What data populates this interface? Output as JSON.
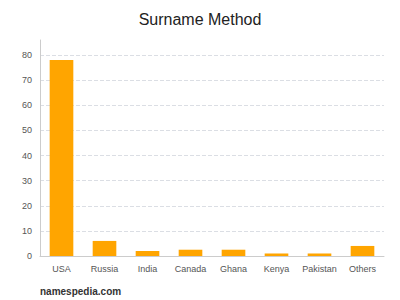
{
  "chart_data": {
    "type": "bar",
    "title": "Surname Method",
    "categories": [
      "USA",
      "Russia",
      "India",
      "Canada",
      "Ghana",
      "Kenya",
      "Pakistan",
      "Others"
    ],
    "values": [
      78,
      6,
      2,
      2.5,
      2.5,
      1,
      1,
      4
    ],
    "color": "#FFA500",
    "ylim": [
      0,
      86
    ],
    "yticks": [
      0,
      10,
      20,
      30,
      40,
      50,
      60,
      70,
      80
    ],
    "grid": true,
    "annotations": [
      "namespedia.com"
    ]
  }
}
